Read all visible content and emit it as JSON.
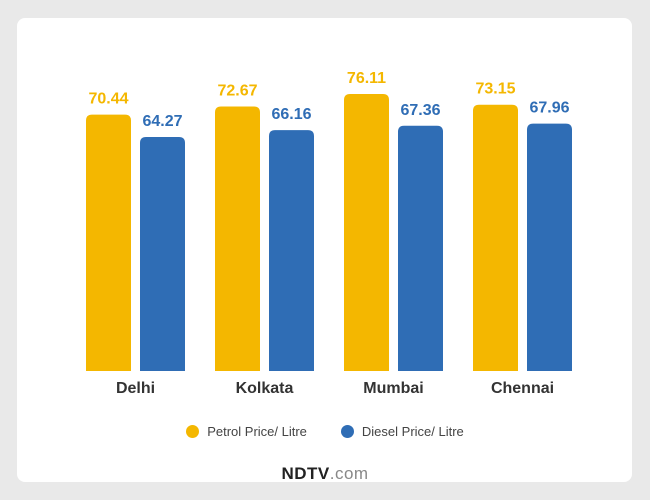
{
  "chart_data": {
    "type": "bar",
    "categories": [
      "Delhi",
      "Kolkata",
      "Mumbai",
      "Chennai"
    ],
    "series": [
      {
        "name": "Petrol Price/ Litre",
        "color": "#f4b700",
        "values": [
          70.44,
          72.67,
          76.11,
          73.15
        ]
      },
      {
        "name": "Diesel Price/ Litre",
        "color": "#2f6db5",
        "values": [
          64.27,
          66.16,
          67.36,
          67.96
        ]
      }
    ],
    "value_label_colors": [
      "#f4b700",
      "#2f6db5"
    ],
    "title": "",
    "xlabel": "",
    "ylabel": "",
    "legend_position": "bottom-center",
    "grid": false
  },
  "brand": {
    "name": "NDTV",
    "suffix": ".com"
  }
}
